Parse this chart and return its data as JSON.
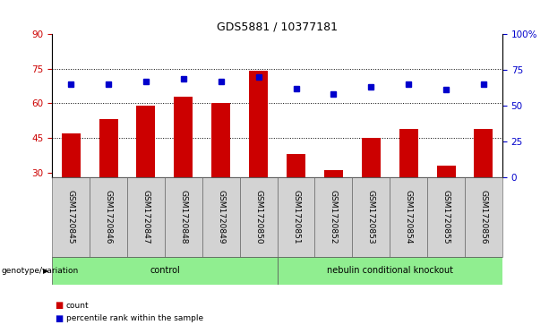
{
  "title": "GDS5881 / 10377181",
  "samples": [
    "GSM1720845",
    "GSM1720846",
    "GSM1720847",
    "GSM1720848",
    "GSM1720849",
    "GSM1720850",
    "GSM1720851",
    "GSM1720852",
    "GSM1720853",
    "GSM1720854",
    "GSM1720855",
    "GSM1720856"
  ],
  "bar_values": [
    47,
    53,
    59,
    63,
    60,
    74,
    38,
    31,
    45,
    49,
    33,
    49
  ],
  "dot_values": [
    65,
    65,
    67,
    69,
    67,
    70,
    62,
    58,
    63,
    65,
    61,
    65
  ],
  "bar_color": "#cc0000",
  "dot_color": "#0000cc",
  "ylim_left": [
    28,
    90
  ],
  "ylim_right": [
    0,
    100
  ],
  "yticks_left": [
    30,
    45,
    60,
    75,
    90
  ],
  "yticks_right": [
    0,
    25,
    50,
    75,
    100
  ],
  "ytick_labels_right": [
    "0",
    "25",
    "50",
    "75",
    "100%"
  ],
  "hlines": [
    45,
    60,
    75
  ],
  "groups": [
    {
      "label": "control",
      "start": 0,
      "end": 5,
      "color": "#90ee90"
    },
    {
      "label": "nebulin conditional knockout",
      "start": 6,
      "end": 11,
      "color": "#90ee90"
    }
  ],
  "group_label_prefix": "genotype/variation",
  "legend_bar_label": "count",
  "legend_dot_label": "percentile rank within the sample",
  "bar_width": 0.5,
  "tick_label_color_left": "#cc0000",
  "tick_label_color_right": "#0000cc",
  "bg_color_plot": "#ffffff",
  "bg_color_xticklabels": "#d3d3d3",
  "title_fontsize": 9,
  "axis_fontsize": 7.5,
  "label_fontsize": 6.5
}
